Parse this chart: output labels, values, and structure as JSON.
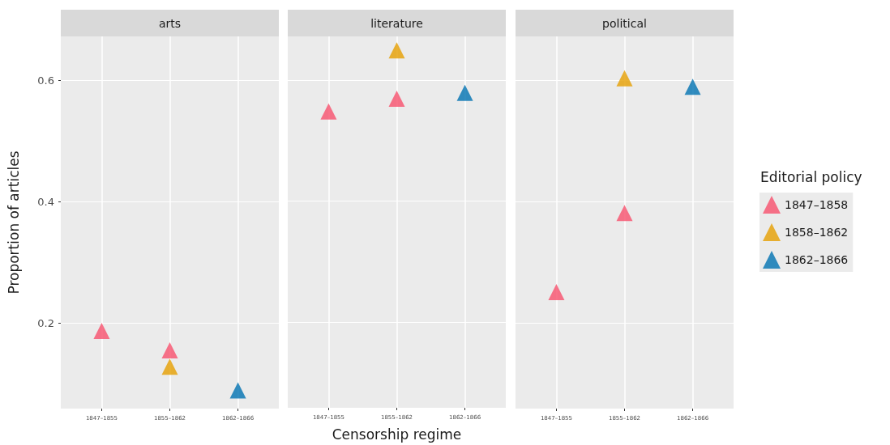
{
  "chart_data": [
    {
      "type": "scatter",
      "title": "arts",
      "ylabel": "Proportion of articles",
      "categories": [
        "1847–1855",
        "1855–1862",
        "1862–1866"
      ],
      "ylim": [
        0.059,
        0.672
      ],
      "yticks": [
        0.2,
        0.4,
        0.6
      ],
      "grid": true,
      "marker": "triangle",
      "legend": false,
      "series": [
        {
          "color": "#f8506d",
          "x": [
            "1847–1855",
            "1855–1862"
          ],
          "values": [
            0.187,
            0.155
          ]
        },
        {
          "color": "#e69f00",
          "x": [
            "1855–1862"
          ],
          "values": [
            0.128
          ]
        },
        {
          "color": "#0072b2",
          "x": [
            "1862–1866"
          ],
          "values": [
            0.089
          ]
        }
      ]
    },
    {
      "type": "scatter",
      "title": "literature",
      "xlabel": "Censorship regime",
      "categories": [
        "1847–1855",
        "1855–1862",
        "1862–1866"
      ],
      "ylim": [
        0.059,
        0.672
      ],
      "yticks": [
        0.2,
        0.4,
        0.6
      ],
      "tick_labels": "x",
      "grid": true,
      "marker": "triangle",
      "legend": false,
      "series": [
        {
          "color": "#f8506d",
          "x": [
            "1847–1855",
            "1855–1862"
          ],
          "values": [
            0.548,
            0.569
          ]
        },
        {
          "color": "#e69f00",
          "x": [
            "1855–1862"
          ],
          "values": [
            0.649
          ]
        },
        {
          "color": "#0072b2",
          "x": [
            "1862–1866"
          ],
          "values": [
            0.579
          ]
        }
      ]
    },
    {
      "type": "scatter",
      "title": "political",
      "legend_title": "Editorial policy",
      "categories": [
        "1847–1855",
        "1855–1862",
        "1862–1866"
      ],
      "ylim": [
        0.059,
        0.672
      ],
      "yticks": [
        0.2,
        0.4,
        0.6
      ],
      "tick_labels": "x",
      "grid": true,
      "marker": "triangle",
      "legend": "right",
      "series": [
        {
          "name": "1847–1858",
          "color": "#f8506d",
          "x": [
            "1847–1855",
            "1855–1862"
          ],
          "values": [
            0.251,
            0.381
          ]
        },
        {
          "name": "1858–1862",
          "color": "#e69f00",
          "x": [
            "1855–1862"
          ],
          "values": [
            0.603
          ]
        },
        {
          "name": "1862–1866",
          "color": "#0072b2",
          "x": [
            "1862–1866"
          ],
          "values": [
            0.589
          ]
        }
      ]
    }
  ]
}
